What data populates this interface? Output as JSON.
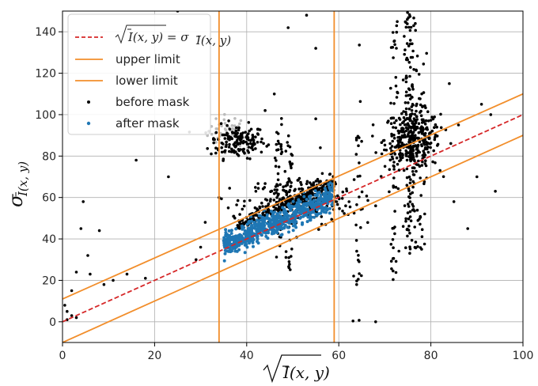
{
  "chart_data": {
    "type": "scatter",
    "xlim": [
      0,
      100
    ],
    "ylim": [
      -10,
      150
    ],
    "x_ticks": [
      0,
      20,
      40,
      60,
      80,
      100
    ],
    "y_ticks": [
      0,
      20,
      40,
      60,
      80,
      100,
      120,
      140
    ],
    "x_tick_labels": [
      "0",
      "20",
      "40",
      "60",
      "80",
      "100"
    ],
    "y_tick_labels": [
      "0",
      "20",
      "40",
      "60",
      "80",
      "100",
      "120",
      "140"
    ],
    "grid": true,
    "legend_position": "top-left",
    "xlabel": "√Ī(x, y)",
    "ylabel": "σ Ī(x, y)",
    "lines": [
      {
        "name": "√Ī(x, y) = σ Ī(x, y)",
        "style": "dashed",
        "color": "#d62728",
        "points": [
          [
            0,
            0
          ],
          [
            100,
            100
          ]
        ]
      },
      {
        "name": "upper limit",
        "style": "solid",
        "color": "#f28e2b",
        "points": [
          [
            0,
            11
          ],
          [
            100,
            110
          ]
        ]
      },
      {
        "name": "lower limit",
        "style": "solid",
        "color": "#f28e2b",
        "points": [
          [
            0,
            -10
          ],
          [
            100,
            90
          ]
        ]
      }
    ],
    "vertical_lines": [
      {
        "x": 34,
        "color": "#f28e2b"
      },
      {
        "x": 59,
        "color": "#f28e2b"
      }
    ],
    "scatter_series": [
      {
        "name": "before mask",
        "color": "#000000",
        "clusters": [
          {
            "x_center": 38,
            "y_center": 87,
            "x_spread": 3,
            "y_spread": 4,
            "count": 160
          },
          {
            "x_center": 76,
            "y_center": 88,
            "x_spread": 3,
            "y_spread": 7,
            "count": 320
          },
          {
            "x_center": 52,
            "y_center": 58,
            "x_spread": 6,
            "y_spread": 6,
            "count": 200
          }
        ],
        "vertical_streaks": [
          {
            "x": 47,
            "y_range": [
              30,
              100
            ],
            "count": 40
          },
          {
            "x": 49,
            "y_range": [
              25,
              90
            ],
            "count": 40
          },
          {
            "x": 64,
            "y_range": [
              -5,
              150
            ],
            "count": 30
          },
          {
            "x": 72,
            "y_range": [
              20,
              150
            ],
            "count": 50
          },
          {
            "x": 75,
            "y_range": [
              30,
              150
            ],
            "count": 70
          },
          {
            "x": 76,
            "y_range": [
              30,
              150
            ],
            "count": 70
          },
          {
            "x": 78,
            "y_range": [
              30,
              130
            ],
            "count": 40
          }
        ],
        "scattered_points": [
          [
            1,
            1
          ],
          [
            2,
            3
          ],
          [
            3,
            2
          ],
          [
            1,
            5
          ],
          [
            0.5,
            8
          ],
          [
            2,
            15
          ],
          [
            3,
            24
          ],
          [
            4,
            45
          ],
          [
            4.5,
            58
          ],
          [
            5.5,
            32
          ],
          [
            6,
            23
          ],
          [
            8,
            44
          ],
          [
            9,
            18
          ],
          [
            11,
            20
          ],
          [
            14,
            23
          ],
          [
            16,
            78
          ],
          [
            18,
            21
          ],
          [
            23,
            70
          ],
          [
            25,
            150
          ],
          [
            29,
            30
          ],
          [
            30,
            36
          ],
          [
            31,
            48
          ],
          [
            33,
            88
          ],
          [
            34,
            60
          ],
          [
            36,
            55
          ],
          [
            41,
            93
          ],
          [
            42,
            63
          ],
          [
            44,
            102
          ],
          [
            46,
            110
          ],
          [
            49,
            142
          ],
          [
            53,
            148
          ],
          [
            55,
            132
          ],
          [
            55,
            98
          ],
          [
            56,
            84
          ],
          [
            68,
            0
          ],
          [
            68,
            56
          ],
          [
            75,
            98
          ],
          [
            82,
            73
          ],
          [
            85,
            58
          ],
          [
            88,
            45
          ],
          [
            90,
            70
          ],
          [
            91,
            105
          ],
          [
            93,
            100
          ],
          [
            94,
            63
          ],
          [
            84,
            115
          ],
          [
            86,
            95
          ]
        ]
      },
      {
        "name": "after mask",
        "color": "#1f77b4",
        "band": {
          "x_range": [
            35,
            59
          ],
          "y_at_x_low": 37,
          "y_at_x_high": 60,
          "thickness": 9,
          "count": 700
        }
      }
    ]
  }
}
